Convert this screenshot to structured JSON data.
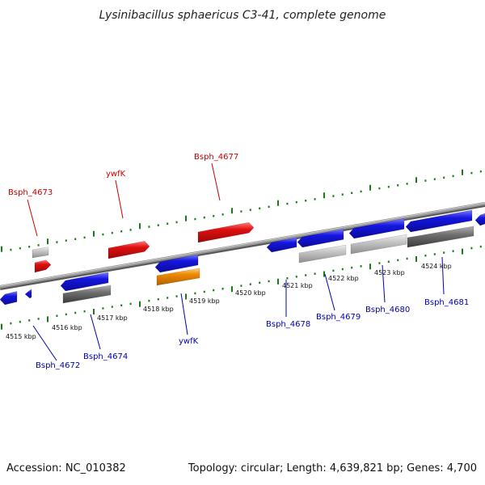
{
  "title": "Lysinibacillus sphaericus C3-41, complete genome",
  "footer": {
    "accession": "Accession: NC_010382",
    "summary": "Topology: circular; Length: 4,639,821 bp; Genes: 4,700"
  },
  "colors": {
    "backbone": "#8a8a8a",
    "forward_label": "#cc0000",
    "reverse_label": "#0000aa",
    "tick": "#1a7a1a",
    "blue": "#1616e0",
    "red": "#e01010",
    "orange": "#f08a00",
    "light_gray": "#c4c4c4",
    "dark_gray": "#6f6f6f"
  },
  "tick_labels": [
    "4515 kbp",
    "4516 kbp",
    "4517 kbp",
    "4518 kbp",
    "4519 kbp",
    "4520 kbp",
    "4521 kbp",
    "4522 kbp",
    "4523 kbp",
    "4524 kbp"
  ],
  "forward_gene_labels": [
    "Bsph_4673",
    "ywfK",
    "Bsph_4677"
  ],
  "reverse_gene_labels": [
    "Bsph_4672",
    "Bsph_4674",
    "ywfK",
    "Bsph_4678",
    "Bsph_4679",
    "Bsph_4680",
    "Bsph_4681"
  ]
}
